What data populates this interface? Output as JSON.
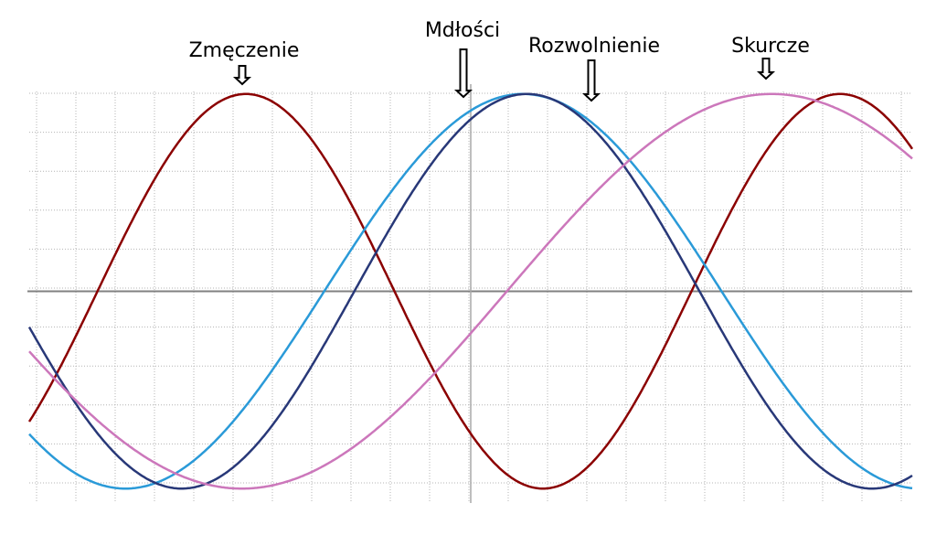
{
  "chart_data": {
    "type": "line",
    "title": "",
    "xlabel": "",
    "ylabel": "",
    "xlim": [
      -11,
      11
    ],
    "ylim": [
      -1.05,
      1.05
    ],
    "grid": true,
    "legend": "none",
    "series": [
      {
        "name": "Zmęczenie",
        "color": "#8b0000",
        "peak_x": -5.6,
        "period": 14.8
      },
      {
        "name": "Mdłości",
        "color": "#2a9ad8",
        "peak_x": 1.3,
        "period": 19.8
      },
      {
        "name": "Rozwolnienie",
        "color": "#283878",
        "peak_x": 1.4,
        "period": 17.2
      },
      {
        "name": "Skurcze",
        "color": "#cc77bb",
        "peak_x": 7.5,
        "period": 26.4
      }
    ]
  }
}
